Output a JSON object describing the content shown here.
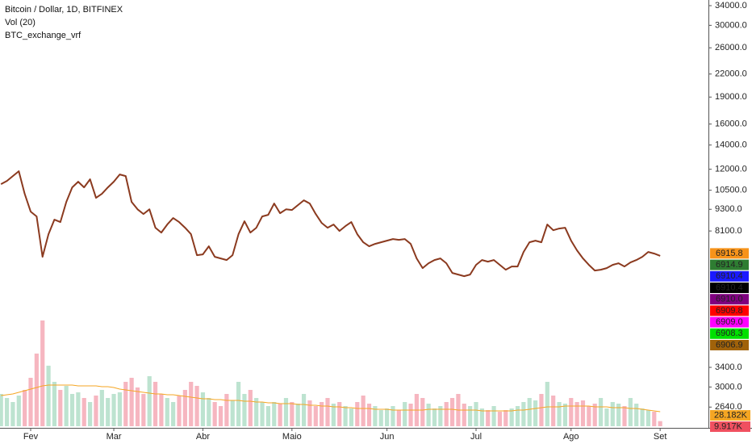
{
  "chart_data": {
    "type": "line",
    "title": "Bitcoin / Dollar, 1D, BITFINEX",
    "indicators": [
      "Vol (20)",
      "BTC_exchange_vrf"
    ],
    "log_scale": true,
    "grid": false,
    "color": "#8b3a1f",
    "ylim": [
      2337,
      35246
    ],
    "yticks": [
      {
        "value": 34000,
        "label": "34000.0"
      },
      {
        "value": 30000,
        "label": "30000.0"
      },
      {
        "value": 26000,
        "label": "26000.0"
      },
      {
        "value": 22000,
        "label": "22000.0"
      },
      {
        "value": 19000,
        "label": "19000.0"
      },
      {
        "value": 16000,
        "label": "16000.0"
      },
      {
        "value": 14000,
        "label": "14000.0"
      },
      {
        "value": 12000,
        "label": "12000.0"
      },
      {
        "value": 10500,
        "label": "10500.0"
      },
      {
        "value": 9300,
        "label": "9300.0"
      },
      {
        "value": 8100,
        "label": "8100.0"
      },
      {
        "value": 3400,
        "label": "3400.0"
      },
      {
        "value": 3000,
        "label": "3000.0"
      },
      {
        "value": 2640,
        "label": "2640.0"
      }
    ],
    "categories": [
      null,
      null,
      null,
      null,
      null,
      "Fev",
      null,
      null,
      null,
      null,
      null,
      null,
      null,
      null,
      null,
      null,
      null,
      null,
      null,
      "Mar",
      null,
      null,
      null,
      null,
      null,
      null,
      null,
      null,
      null,
      null,
      null,
      null,
      null,
      null,
      "Abr",
      null,
      null,
      null,
      null,
      null,
      null,
      null,
      null,
      null,
      null,
      null,
      null,
      null,
      null,
      "Maio",
      null,
      null,
      null,
      null,
      null,
      null,
      null,
      null,
      null,
      null,
      null,
      null,
      null,
      null,
      null,
      "Jun",
      null,
      null,
      null,
      null,
      null,
      null,
      null,
      null,
      null,
      null,
      null,
      null,
      null,
      null,
      "Jul",
      null,
      null,
      null,
      null,
      null,
      null,
      null,
      null,
      null,
      null,
      null,
      null,
      null,
      null,
      null,
      "Ago",
      null,
      null,
      null,
      null,
      null,
      null,
      null,
      null,
      null,
      null,
      null,
      null,
      null,
      null,
      "Set"
    ],
    "values": [
      10912,
      11139,
      11488,
      11848,
      10260,
      9163,
      8885,
      6872,
      7935,
      8704,
      8571,
      9746,
      10690,
      11082,
      10690,
      11254,
      9999,
      10260,
      10690,
      11082,
      11607,
      11488,
      9746,
      9300,
      9023,
      9300,
      8268,
      8017,
      8440,
      8794,
      8571,
      8268,
      7935,
      6943,
      6979,
      7347,
      6872,
      6801,
      6732,
      6943,
      7935,
      8615,
      8017,
      8268,
      8885,
      8977,
      9646,
      9070,
      9300,
      9258,
      9548,
      9847,
      9646,
      9023,
      8527,
      8268,
      8440,
      8100,
      8354,
      8571,
      7935,
      7538,
      7347,
      7461,
      7538,
      7616,
      7694,
      7655,
      7694,
      7461,
      6801,
      6395,
      6595,
      6732,
      6801,
      6595,
      6201,
      6137,
      6074,
      6137,
      6528,
      6732,
      6663,
      6732,
      6528,
      6329,
      6461,
      6461,
      7087,
      7538,
      7616,
      7538,
      8440,
      8141,
      8226,
      8268,
      7616,
      7160,
      6801,
      6528,
      6297,
      6329,
      6395,
      6528,
      6595,
      6461,
      6629,
      6732,
      6872,
      7087,
      7014,
      6916
    ],
    "volume": {
      "up_color": "#bde3d0",
      "down_color": "#f6b6c0",
      "ylim": [
        0,
        300000
      ],
      "values": [
        62640,
        54810,
        46980,
        59508,
        70470,
        93960,
        140940,
        205146,
        117450,
        86130,
        70470,
        78300,
        62640,
        65772,
        54810,
        46980,
        59508,
        70470,
        54810,
        62640,
        65772,
        86130,
        93960,
        75168,
        62640,
        97092,
        86130,
        62640,
        54810,
        46980,
        59508,
        70470,
        86130,
        78300,
        65772,
        54810,
        46980,
        39150,
        62640,
        50112,
        86130,
        62640,
        70470,
        54810,
        46980,
        39150,
        46980,
        43848,
        54810,
        46980,
        43848,
        62640,
        50112,
        39150,
        46980,
        54810,
        43848,
        46980,
        39150,
        34452,
        46980,
        59508,
        43848,
        39150,
        31320,
        34452,
        39150,
        31320,
        46980,
        43848,
        62640,
        54810,
        43848,
        34452,
        39150,
        46980,
        54810,
        62640,
        43848,
        39150,
        46980,
        34452,
        31320,
        39150,
        28188,
        31320,
        34452,
        39150,
        46980,
        54810,
        50112,
        62640,
        86130,
        59508,
        46980,
        43848,
        54810,
        46980,
        50112,
        39150,
        43848,
        54810,
        34452,
        46980,
        43848,
        39150,
        54810,
        43848,
        34452,
        31320,
        28188,
        9917
      ],
      "last_label": "9.917K",
      "label_color": "#f05060"
    },
    "volume_ma": {
      "color": "#f5a623",
      "values": [
        59508,
        61074,
        62640,
        65772,
        68904,
        72036,
        75168,
        78300,
        79866,
        79866,
        79866,
        79866,
        79866,
        78300,
        78300,
        78300,
        78300,
        76734,
        76734,
        75168,
        72036,
        70470,
        68904,
        67338,
        65772,
        64206,
        62640,
        62640,
        61074,
        61074,
        59508,
        57942,
        56376,
        54810,
        53244,
        53244,
        51678,
        51678,
        50112,
        50112,
        50112,
        48546,
        48546,
        46980,
        46980,
        45414,
        45414,
        43848,
        43848,
        43848,
        42282,
        42282,
        40716,
        40716,
        39150,
        39150,
        37584,
        37584,
        36018,
        36018,
        34452,
        34452,
        34452,
        32886,
        32886,
        32886,
        31320,
        31320,
        31320,
        31320,
        31320,
        31320,
        32886,
        32886,
        32886,
        32886,
        32886,
        31320,
        31320,
        31320,
        31320,
        29754,
        29754,
        29754,
        29754,
        29754,
        29754,
        31320,
        31320,
        32886,
        34452,
        36018,
        37584,
        37584,
        37584,
        39150,
        39150,
        39150,
        39150,
        39150,
        37584,
        37584,
        37584,
        36018,
        36018,
        36018,
        34452,
        34452,
        32886,
        31320,
        29754,
        28182
      ],
      "last_label": "28.182K"
    },
    "exchange_labels": [
      {
        "value": 6915.8,
        "label": "6915.8",
        "color": "#f7931a",
        "text_color": "#ffffff"
      },
      {
        "value": 6914.9,
        "label": "6914.9",
        "color": "#2e7d32",
        "text_color": "#ffffff"
      },
      {
        "value": 6910.4,
        "label": "6910.4",
        "color": "#1a1aff",
        "text_color": "#ffffff"
      },
      {
        "value": 6910.4,
        "label": "6910.4",
        "color": "#000000",
        "text_color": "#ffffff"
      },
      {
        "value": 6910,
        "label": "6910.0",
        "color": "#800080",
        "text_color": "#ffffff"
      },
      {
        "value": 6909.8,
        "label": "6909.8",
        "color": "#ff0000",
        "text_color": "#ffffff"
      },
      {
        "value": 6909,
        "label": "6909.0",
        "color": "#ff00ff",
        "text_color": "#ffffff"
      },
      {
        "value": 6908.3,
        "label": "6908.3",
        "color": "#00e000",
        "text_color": "#000000"
      },
      {
        "value": 6906.9,
        "label": "6906.9",
        "color": "#a0620a",
        "text_color": "#ffffff"
      }
    ]
  }
}
